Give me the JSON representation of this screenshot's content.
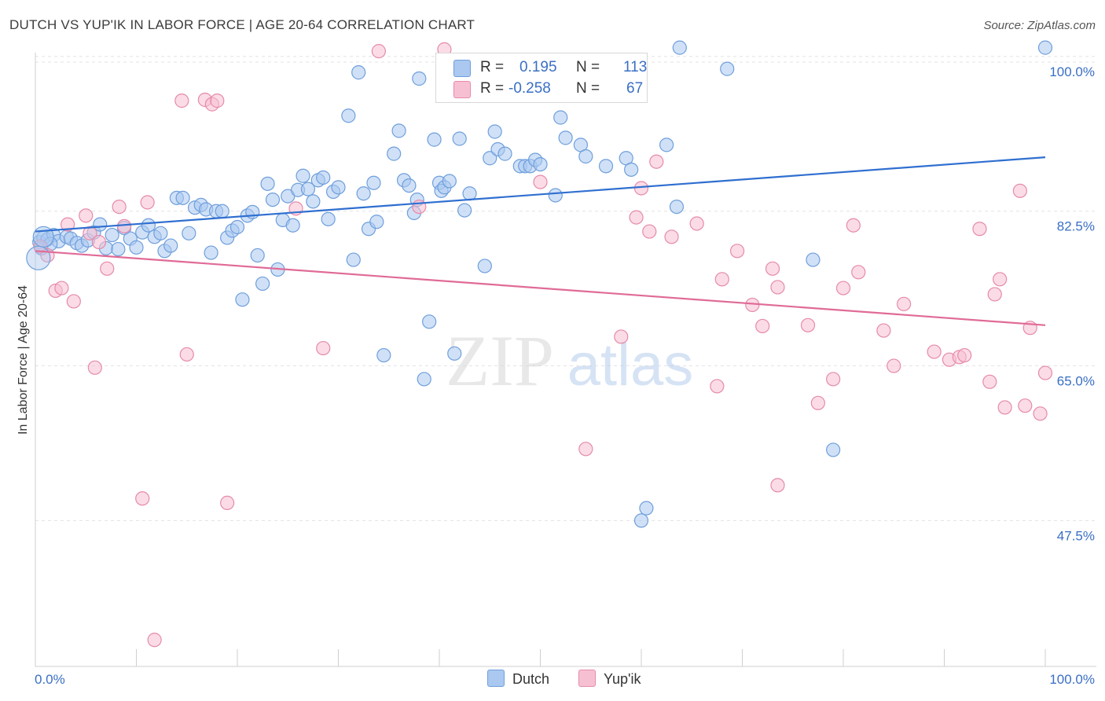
{
  "header": {
    "title": "DUTCH VS YUP'IK IN LABOR FORCE | AGE 20-64 CORRELATION CHART",
    "source": "Source: ZipAtlas.com"
  },
  "legend": {
    "rows": [
      {
        "r_label": "R =",
        "r_value": "0.195",
        "n_label": "N =",
        "n_value": "113",
        "color": "#aac8f0",
        "border": "#6f9fdc"
      },
      {
        "r_label": "R =",
        "r_value": "-0.258",
        "n_label": "N =",
        "n_value": "67",
        "color": "#f7c0d2",
        "border": "#e68aaa"
      }
    ]
  },
  "watermark": {
    "zip": "ZIP",
    "atlas": "atlas"
  },
  "chart_data": {
    "type": "scatter",
    "title": "DUTCH VS YUP'IK IN LABOR FORCE | AGE 20-64 CORRELATION CHART",
    "xlabel": "",
    "ylabel": "In Labor Force | Age 20-64",
    "xlim": [
      0,
      100
    ],
    "ylim": [
      31,
      101.5
    ],
    "x_tick_labels": [
      "0.0%",
      "100.0%"
    ],
    "y_ticks": [
      47.5,
      65.0,
      82.5,
      100.0
    ],
    "y_tick_labels": [
      "47.5%",
      "65.0%",
      "82.5%",
      "100.0%"
    ],
    "grid": true,
    "legend_position": "top-center",
    "series": [
      {
        "name": "Dutch",
        "color": "#6f9fdc",
        "fill": "#aac8f0",
        "trend": {
          "x": [
            0,
            100
          ],
          "y": [
            80.2,
            88.6
          ]
        },
        "points": [
          [
            0.4,
            79.0
          ],
          [
            0.8,
            79.5
          ],
          [
            1.2,
            79.3
          ],
          [
            1.8,
            79.8
          ],
          [
            2.3,
            79.1
          ],
          [
            3.1,
            79.6
          ],
          [
            3.5,
            79.4
          ],
          [
            4.1,
            78.9
          ],
          [
            4.6,
            78.6
          ],
          [
            5.2,
            79.2
          ],
          [
            5.8,
            80.1
          ],
          [
            6.4,
            81.0
          ],
          [
            7.0,
            78.3
          ],
          [
            7.6,
            79.8
          ],
          [
            8.2,
            78.2
          ],
          [
            8.8,
            80.6
          ],
          [
            9.4,
            79.4
          ],
          [
            10.0,
            78.4
          ],
          [
            10.6,
            80.1
          ],
          [
            11.2,
            80.9
          ],
          [
            11.8,
            79.6
          ],
          [
            12.4,
            80.0
          ],
          [
            12.8,
            78.0
          ],
          [
            13.4,
            78.6
          ],
          [
            14.0,
            84.0
          ],
          [
            14.6,
            84.0
          ],
          [
            15.2,
            80.0
          ],
          [
            15.8,
            82.9
          ],
          [
            16.4,
            83.2
          ],
          [
            16.9,
            82.7
          ],
          [
            17.4,
            77.8
          ],
          [
            17.9,
            82.5
          ],
          [
            18.5,
            82.5
          ],
          [
            19.0,
            79.5
          ],
          [
            19.5,
            80.3
          ],
          [
            20.0,
            80.7
          ],
          [
            20.5,
            72.5
          ],
          [
            21.0,
            82.0
          ],
          [
            21.5,
            82.4
          ],
          [
            22.0,
            77.5
          ],
          [
            22.5,
            74.3
          ],
          [
            23.0,
            85.6
          ],
          [
            23.5,
            83.8
          ],
          [
            24.0,
            75.9
          ],
          [
            24.5,
            81.5
          ],
          [
            25.0,
            84.2
          ],
          [
            25.5,
            80.9
          ],
          [
            26.0,
            84.9
          ],
          [
            26.5,
            86.5
          ],
          [
            27.0,
            85.0
          ],
          [
            27.5,
            83.6
          ],
          [
            28.0,
            86.0
          ],
          [
            28.5,
            86.3
          ],
          [
            29.0,
            81.6
          ],
          [
            29.5,
            84.7
          ],
          [
            30.0,
            85.2
          ],
          [
            31.0,
            93.3
          ],
          [
            31.5,
            77.0
          ],
          [
            32.0,
            98.2
          ],
          [
            32.5,
            84.5
          ],
          [
            33.0,
            80.5
          ],
          [
            33.5,
            85.7
          ],
          [
            33.8,
            81.3
          ],
          [
            34.5,
            66.2
          ],
          [
            35.5,
            89.0
          ],
          [
            36.0,
            91.6
          ],
          [
            36.5,
            86.0
          ],
          [
            37.0,
            85.4
          ],
          [
            37.5,
            82.3
          ],
          [
            37.8,
            83.8
          ],
          [
            38.0,
            97.5
          ],
          [
            38.5,
            63.5
          ],
          [
            39.0,
            70.0
          ],
          [
            39.5,
            90.6
          ],
          [
            40.0,
            85.7
          ],
          [
            40.2,
            84.8
          ],
          [
            40.5,
            85.2
          ],
          [
            41.0,
            85.9
          ],
          [
            41.5,
            66.4
          ],
          [
            42.0,
            90.7
          ],
          [
            42.5,
            82.6
          ],
          [
            43.0,
            84.5
          ],
          [
            44.5,
            76.3
          ],
          [
            45.0,
            88.5
          ],
          [
            45.5,
            91.5
          ],
          [
            45.8,
            89.5
          ],
          [
            46.5,
            89.0
          ],
          [
            47.5,
            96.3
          ],
          [
            48.0,
            87.6
          ],
          [
            48.5,
            87.6
          ],
          [
            49.0,
            87.6
          ],
          [
            49.5,
            88.3
          ],
          [
            50.0,
            87.8
          ],
          [
            51.5,
            84.3
          ],
          [
            52.0,
            93.1
          ],
          [
            52.5,
            90.8
          ],
          [
            53.5,
            95.9
          ],
          [
            54.0,
            90.0
          ],
          [
            54.5,
            88.7
          ],
          [
            56.5,
            87.6
          ],
          [
            58.5,
            88.5
          ],
          [
            59.0,
            87.2
          ],
          [
            60.0,
            47.5
          ],
          [
            60.5,
            48.9
          ],
          [
            62.5,
            90.0
          ],
          [
            63.5,
            83.0
          ],
          [
            63.8,
            101.0
          ],
          [
            68.5,
            98.6
          ],
          [
            77.0,
            77.0
          ],
          [
            79.0,
            55.5
          ],
          [
            100.0,
            101.0
          ],
          [
            0.6,
            78.3
          ],
          [
            1.5,
            78.8
          ]
        ]
      },
      {
        "name": "Yup'ik",
        "color": "#e68aaa",
        "fill": "#f7c0d2",
        "trend": {
          "x": [
            0,
            100
          ],
          "y": [
            78.0,
            69.6
          ]
        },
        "points": [
          [
            0.5,
            78.5
          ],
          [
            1.2,
            77.5
          ],
          [
            2.0,
            73.5
          ],
          [
            2.6,
            73.8
          ],
          [
            3.2,
            81.0
          ],
          [
            3.8,
            72.3
          ],
          [
            5.0,
            82.0
          ],
          [
            5.4,
            80.0
          ],
          [
            5.9,
            64.8
          ],
          [
            6.3,
            79.0
          ],
          [
            7.1,
            76.0
          ],
          [
            8.3,
            83.0
          ],
          [
            8.8,
            80.8
          ],
          [
            10.6,
            50.0
          ],
          [
            11.1,
            83.5
          ],
          [
            11.8,
            34.0
          ],
          [
            14.5,
            95.0
          ],
          [
            15.0,
            66.3
          ],
          [
            16.8,
            95.1
          ],
          [
            17.5,
            94.6
          ],
          [
            18.0,
            95.0
          ],
          [
            19.0,
            49.5
          ],
          [
            25.8,
            82.8
          ],
          [
            28.5,
            67.0
          ],
          [
            34.0,
            100.6
          ],
          [
            40.5,
            100.8
          ],
          [
            50.0,
            85.8
          ],
          [
            54.5,
            55.6
          ],
          [
            58.0,
            68.3
          ],
          [
            59.5,
            81.8
          ],
          [
            60.0,
            85.1
          ],
          [
            60.8,
            80.2
          ],
          [
            61.5,
            88.1
          ],
          [
            63.0,
            79.6
          ],
          [
            65.5,
            81.1
          ],
          [
            68.0,
            74.8
          ],
          [
            69.5,
            78.0
          ],
          [
            71.0,
            71.9
          ],
          [
            72.0,
            69.5
          ],
          [
            73.0,
            76.0
          ],
          [
            73.5,
            73.9
          ],
          [
            76.5,
            69.6
          ],
          [
            77.5,
            60.8
          ],
          [
            79.0,
            63.5
          ],
          [
            80.0,
            73.8
          ],
          [
            81.0,
            80.9
          ],
          [
            81.5,
            75.6
          ],
          [
            84.0,
            69.0
          ],
          [
            85.0,
            65.0
          ],
          [
            86.0,
            72.0
          ],
          [
            89.0,
            66.6
          ],
          [
            90.5,
            65.7
          ],
          [
            91.5,
            66.0
          ],
          [
            92.0,
            66.2
          ],
          [
            93.5,
            80.5
          ],
          [
            94.5,
            63.2
          ],
          [
            95.0,
            73.1
          ],
          [
            95.5,
            74.8
          ],
          [
            96.0,
            60.3
          ],
          [
            97.5,
            84.8
          ],
          [
            98.0,
            60.5
          ],
          [
            98.5,
            69.3
          ],
          [
            99.5,
            59.6
          ],
          [
            100.0,
            64.2
          ],
          [
            73.5,
            51.5
          ],
          [
            67.5,
            62.7
          ],
          [
            38.0,
            83.0
          ]
        ]
      }
    ]
  }
}
